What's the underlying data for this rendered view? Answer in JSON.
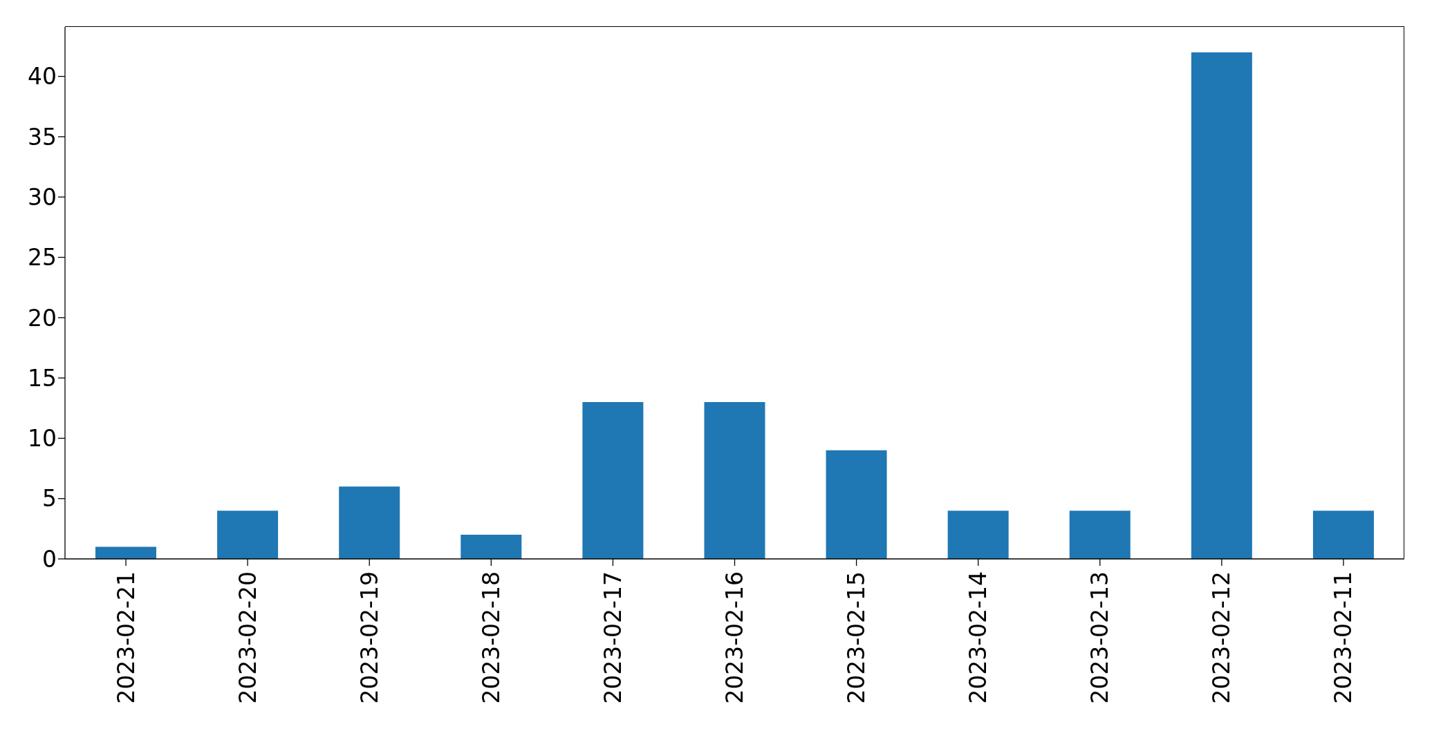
{
  "chart_data": {
    "type": "bar",
    "categories": [
      "2023-02-21",
      "2023-02-20",
      "2023-02-19",
      "2023-02-18",
      "2023-02-17",
      "2023-02-16",
      "2023-02-15",
      "2023-02-14",
      "2023-02-13",
      "2023-02-12",
      "2023-02-11"
    ],
    "values": [
      1,
      4,
      6,
      2,
      13,
      13,
      9,
      4,
      4,
      42,
      4
    ],
    "color": "#1f77b4",
    "ylim": [
      0,
      44.1
    ],
    "yticks": [
      0,
      5,
      10,
      15,
      20,
      25,
      30,
      35,
      40
    ]
  }
}
